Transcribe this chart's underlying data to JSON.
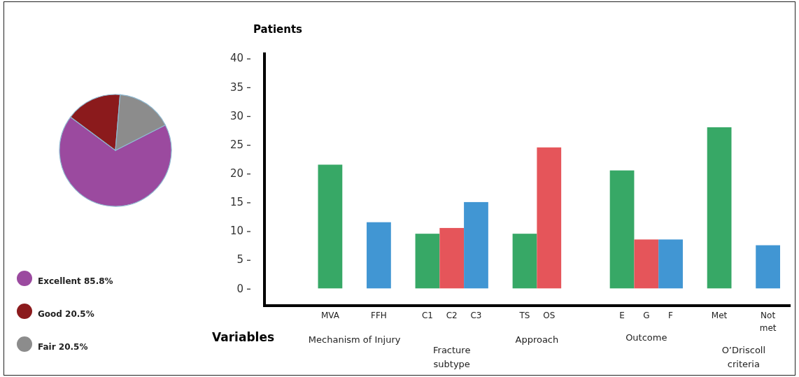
{
  "chart_data": [
    {
      "type": "pie",
      "categories": [
        "Excellent",
        "Good",
        "Fair"
      ],
      "values": [
        85.8,
        20.5,
        20.5
      ],
      "colors": [
        "#9b4a9f",
        "#8b1a1c",
        "#8c8c8c"
      ],
      "value_labels": [
        "85.8%",
        "20.5%",
        "20.5%"
      ],
      "legend": "bottom"
    },
    {
      "type": "bar",
      "ylabel": "Patients",
      "xlabel": "Variables",
      "categories": [
        null,
        null,
        "MVA",
        null,
        "FFH",
        null,
        "C1",
        "C2",
        "C3",
        null,
        "TS",
        "OS",
        null,
        null,
        "E",
        "G",
        "F",
        null,
        "Met",
        null,
        "Not met"
      ],
      "values": [
        null,
        null,
        21.5,
        null,
        11.5,
        null,
        9.5,
        10.5,
        15,
        null,
        9.5,
        24.5,
        null,
        null,
        20.5,
        8.5,
        8.5,
        null,
        28,
        null,
        7.5
      ],
      "colors": [
        null,
        null,
        "#37a866",
        null,
        "#4196d3",
        null,
        "#37a866",
        "#e5555a",
        "#4196d3",
        null,
        "#37a866",
        "#e5555a",
        null,
        null,
        "#37a866",
        "#e5555a",
        "#4196d3",
        null,
        "#37a866",
        null,
        "#4196d3"
      ],
      "ylim": [
        -3,
        41
      ],
      "yticks": [
        0,
        5,
        10,
        15,
        20,
        25,
        30,
        35,
        40
      ],
      "grid": false,
      "annotations": [
        "Mechanism of Injury",
        "Fracture subtype",
        "Approach",
        "Outcome",
        "O’Driscoll criteria"
      ]
    }
  ]
}
